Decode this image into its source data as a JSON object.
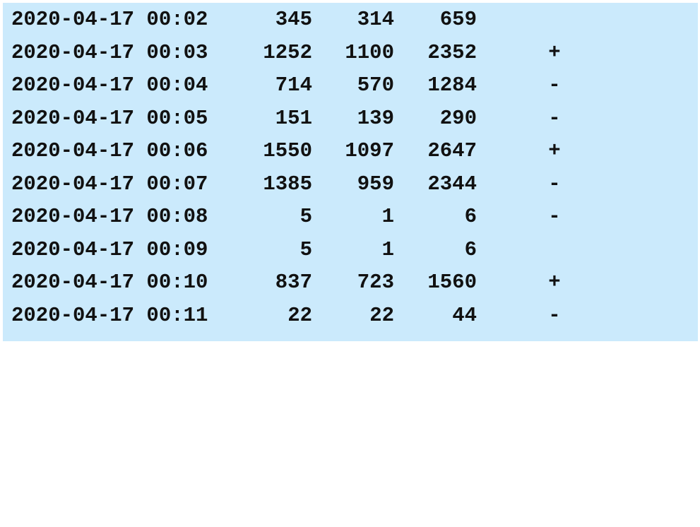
{
  "table": {
    "rows": [
      {
        "timestamp": "2020-04-17 00:02",
        "a": "345",
        "b": "314",
        "total": "659",
        "sign": ""
      },
      {
        "timestamp": "2020-04-17 00:03",
        "a": "1252",
        "b": "1100",
        "total": "2352",
        "sign": "+"
      },
      {
        "timestamp": "2020-04-17 00:04",
        "a": "714",
        "b": "570",
        "total": "1284",
        "sign": "-"
      },
      {
        "timestamp": "2020-04-17 00:05",
        "a": "151",
        "b": "139",
        "total": "290",
        "sign": "-"
      },
      {
        "timestamp": "2020-04-17 00:06",
        "a": "1550",
        "b": "1097",
        "total": "2647",
        "sign": "+"
      },
      {
        "timestamp": "2020-04-17 00:07",
        "a": "1385",
        "b": "959",
        "total": "2344",
        "sign": "-"
      },
      {
        "timestamp": "2020-04-17 00:08",
        "a": "5",
        "b": "1",
        "total": "6",
        "sign": "-"
      },
      {
        "timestamp": "2020-04-17 00:09",
        "a": "5",
        "b": "1",
        "total": "6",
        "sign": ""
      },
      {
        "timestamp": "2020-04-17 00:10",
        "a": "837",
        "b": "723",
        "total": "1560",
        "sign": "+"
      },
      {
        "timestamp": "2020-04-17 00:11",
        "a": "22",
        "b": "22",
        "total": "44",
        "sign": "-"
      }
    ]
  },
  "colors": {
    "background": "#cbeafc",
    "text": "#111111"
  }
}
